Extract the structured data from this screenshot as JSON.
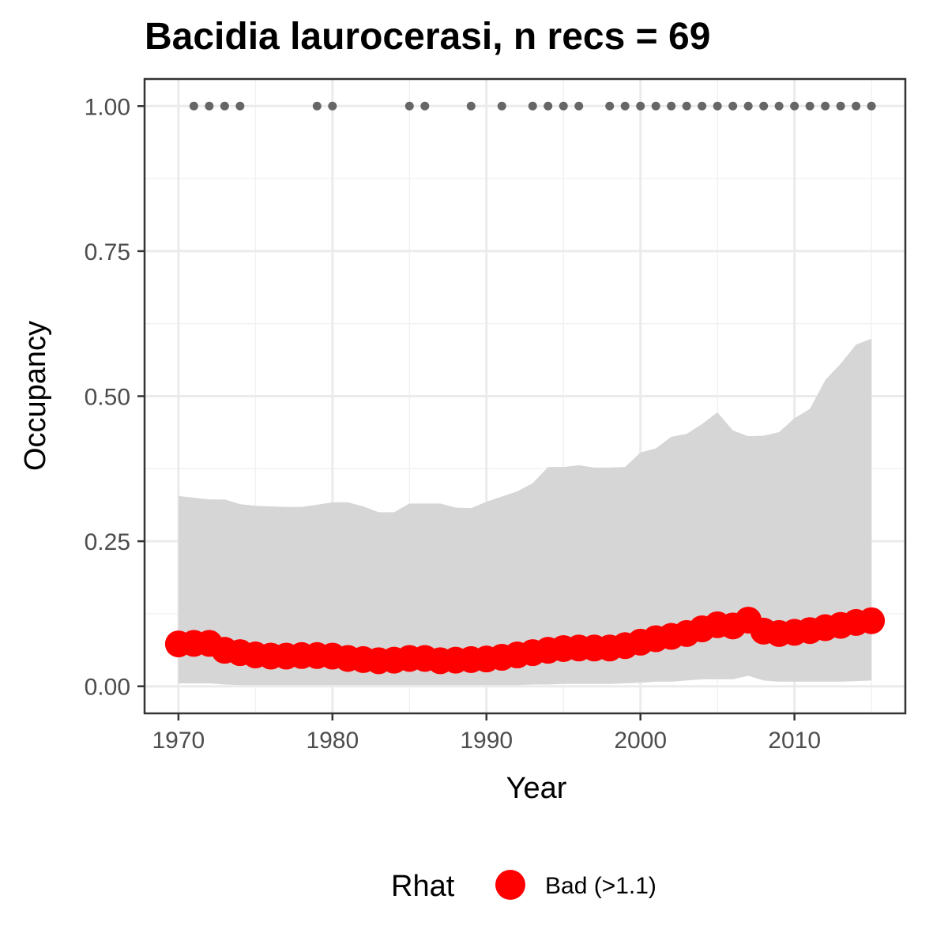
{
  "chart_data": {
    "type": "line",
    "title": "Bacidia laurocerasi, n recs = 69",
    "xlabel": "Year",
    "ylabel": "Occupancy",
    "xlim": [
      1968.9,
      11017.2
    ],
    "ylim": [
      -0.0467,
      1.0467
    ],
    "x_ticks": [
      1970,
      1980,
      1990,
      2000,
      2010
    ],
    "x_tick_labels": [
      "1970",
      "1980",
      "1990",
      "2000",
      "2010"
    ],
    "y_ticks": [
      0,
      0.25,
      0.5,
      0.75,
      1.0
    ],
    "y_tick_labels": [
      "0.00",
      "0.25",
      "0.50",
      "0.75",
      "1.00"
    ],
    "grid": true,
    "years": [
      1970,
      1971,
      1972,
      1973,
      1974,
      1975,
      1976,
      1977,
      1978,
      1979,
      1980,
      1981,
      1982,
      1983,
      1984,
      1985,
      1986,
      1987,
      1988,
      1989,
      1990,
      1991,
      1992,
      1993,
      1994,
      1995,
      1996,
      1997,
      1998,
      1999,
      2000,
      2001,
      2002,
      2003,
      2004,
      2005,
      2006,
      2007,
      2008,
      2009,
      2010,
      2011,
      2012,
      2013,
      2014,
      2015
    ],
    "series": [
      {
        "name": "Bad (>1.1)",
        "color": "#ff0000",
        "values": [
          0.073,
          0.074,
          0.074,
          0.062,
          0.058,
          0.054,
          0.052,
          0.052,
          0.053,
          0.053,
          0.052,
          0.048,
          0.046,
          0.044,
          0.045,
          0.048,
          0.048,
          0.044,
          0.045,
          0.046,
          0.047,
          0.05,
          0.054,
          0.058,
          0.062,
          0.065,
          0.066,
          0.066,
          0.066,
          0.07,
          0.076,
          0.082,
          0.086,
          0.091,
          0.099,
          0.106,
          0.104,
          0.114,
          0.095,
          0.091,
          0.093,
          0.096,
          0.101,
          0.105,
          0.11,
          0.113
        ]
      }
    ],
    "ci_lower": [
      0.005,
      0.005,
      0.005,
      0.003,
      0.002,
      0.002,
      0.002,
      0.002,
      0.002,
      0.002,
      0.002,
      0.002,
      0.002,
      0.002,
      0.002,
      0.002,
      0.002,
      0.002,
      0.002,
      0.002,
      0.002,
      0.002,
      0.002,
      0.003,
      0.003,
      0.004,
      0.004,
      0.004,
      0.004,
      0.005,
      0.006,
      0.008,
      0.008,
      0.01,
      0.012,
      0.012,
      0.012,
      0.018,
      0.01,
      0.008,
      0.008,
      0.008,
      0.008,
      0.008,
      0.009,
      0.01
    ],
    "ci_upper": [
      0.328,
      0.325,
      0.322,
      0.322,
      0.314,
      0.311,
      0.31,
      0.309,
      0.309,
      0.313,
      0.317,
      0.317,
      0.31,
      0.3,
      0.3,
      0.315,
      0.315,
      0.315,
      0.308,
      0.307,
      0.318,
      0.327,
      0.336,
      0.35,
      0.378,
      0.378,
      0.381,
      0.377,
      0.377,
      0.378,
      0.403,
      0.41,
      0.43,
      0.435,
      0.452,
      0.472,
      0.441,
      0.431,
      0.432,
      0.438,
      0.462,
      0.478,
      0.528,
      0.556,
      0.589,
      0.599
    ],
    "ci_color": "#d6d6d6",
    "record_years": [
      1971,
      1972,
      1973,
      1974,
      1979,
      1980,
      1985,
      1986,
      1989,
      1991,
      1993,
      1994,
      1995,
      1996,
      1998,
      1999,
      2000,
      2001,
      2002,
      2003,
      2004,
      2005,
      2006,
      2007,
      2008,
      2009,
      2010,
      2011,
      2012,
      2013,
      2014,
      2015
    ],
    "record_value": 1.0,
    "record_color": "#666666",
    "legend": {
      "title": "Rhat",
      "label": "Bad (>1.1)",
      "placement": "bottom"
    }
  }
}
